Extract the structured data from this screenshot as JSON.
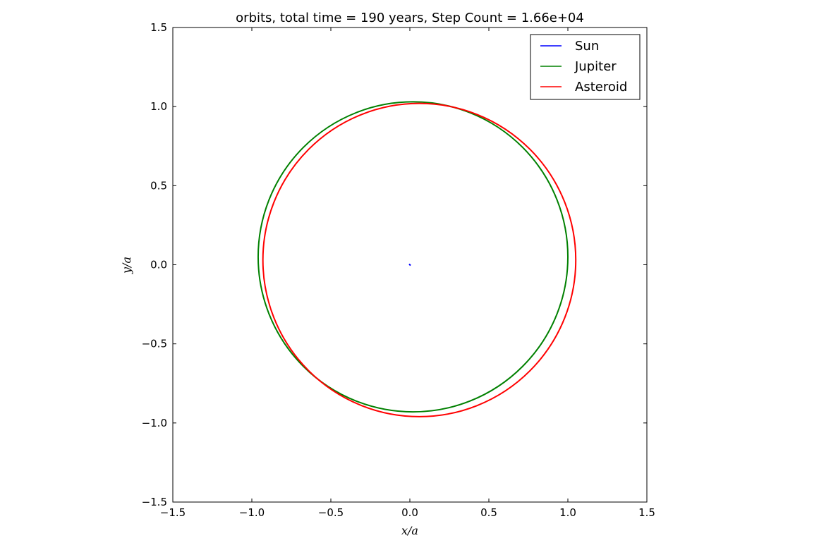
{
  "chart_data": {
    "type": "line",
    "title": "orbits, total time = 190 years, Step Count = 1.66e+04",
    "xlabel": "x/a",
    "ylabel": "y/a",
    "xlim": [
      -1.5,
      1.5
    ],
    "ylim": [
      -1.5,
      1.5
    ],
    "xticks": [
      -1.5,
      -1.0,
      -0.5,
      0.0,
      0.5,
      1.0,
      1.5
    ],
    "yticks": [
      -1.5,
      -1.0,
      -0.5,
      0.0,
      0.5,
      1.0,
      1.5
    ],
    "xtick_labels": [
      "−1.5",
      "−1.0",
      "−0.5",
      "0.0",
      "0.5",
      "1.0",
      "1.5"
    ],
    "ytick_labels": [
      "−1.5",
      "−1.0",
      "−0.5",
      "0.0",
      "0.5",
      "1.0",
      "1.5"
    ],
    "grid": false,
    "legend_position": "top-right",
    "series": [
      {
        "name": "Sun",
        "color": "#0000ff",
        "shape": "circle",
        "center": [
          0.0,
          0.0
        ],
        "radius": 0.004
      },
      {
        "name": "Jupiter",
        "color": "#008000",
        "shape": "circle",
        "center": [
          0.02,
          0.05
        ],
        "radius": 0.98
      },
      {
        "name": "Asteroid",
        "color": "#ff0000",
        "shape": "circle",
        "center": [
          0.06,
          0.03
        ],
        "radius": 0.99
      }
    ]
  }
}
